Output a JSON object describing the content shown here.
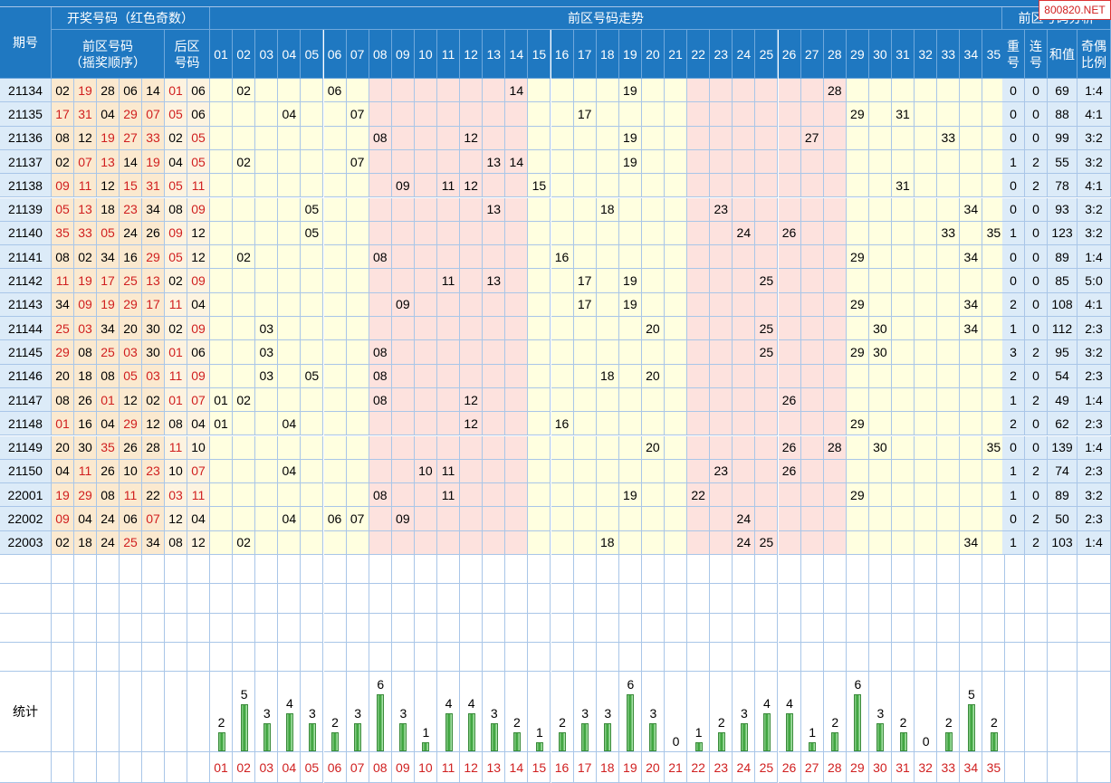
{
  "watermark": "800820.NET",
  "header": {
    "issue": "期号",
    "draw_title": "开奖号码（红色奇数）",
    "front_order_1": "前区号码",
    "front_order_2": "（摇奖顺序）",
    "back_1": "后区",
    "back_2": "号码",
    "trend_title": "前区号码走势",
    "analysis_title": "前区号码分析",
    "repeat": [
      "重",
      "号"
    ],
    "consecutive": [
      "连",
      "号"
    ],
    "sum": "和值",
    "ratio": [
      "奇偶",
      "比例"
    ],
    "numbers": [
      "01",
      "02",
      "03",
      "04",
      "05",
      "06",
      "07",
      "08",
      "09",
      "10",
      "11",
      "12",
      "13",
      "14",
      "15",
      "16",
      "17",
      "18",
      "19",
      "20",
      "21",
      "22",
      "23",
      "24",
      "25",
      "26",
      "27",
      "28",
      "29",
      "30",
      "31",
      "32",
      "33",
      "34",
      "35"
    ]
  },
  "rows": [
    {
      "issue": "21134",
      "front": [
        "02",
        "19",
        "28",
        "06",
        "14"
      ],
      "back": [
        "01",
        "06"
      ],
      "repeat": "0",
      "consecutive": "0",
      "sum": "69",
      "ratio": "1:4"
    },
    {
      "issue": "21135",
      "front": [
        "17",
        "31",
        "04",
        "29",
        "07"
      ],
      "back": [
        "05",
        "06"
      ],
      "repeat": "0",
      "consecutive": "0",
      "sum": "88",
      "ratio": "4:1"
    },
    {
      "issue": "21136",
      "front": [
        "08",
        "12",
        "19",
        "27",
        "33"
      ],
      "back": [
        "02",
        "05"
      ],
      "repeat": "0",
      "consecutive": "0",
      "sum": "99",
      "ratio": "3:2"
    },
    {
      "issue": "21137",
      "front": [
        "02",
        "07",
        "13",
        "14",
        "19"
      ],
      "back": [
        "04",
        "05"
      ],
      "repeat": "1",
      "consecutive": "2",
      "sum": "55",
      "ratio": "3:2"
    },
    {
      "issue": "21138",
      "front": [
        "09",
        "11",
        "12",
        "15",
        "31"
      ],
      "back": [
        "05",
        "11"
      ],
      "repeat": "0",
      "consecutive": "2",
      "sum": "78",
      "ratio": "4:1"
    },
    {
      "issue": "21139",
      "front": [
        "05",
        "13",
        "18",
        "23",
        "34"
      ],
      "back": [
        "08",
        "09"
      ],
      "repeat": "0",
      "consecutive": "0",
      "sum": "93",
      "ratio": "3:2"
    },
    {
      "issue": "21140",
      "front": [
        "35",
        "33",
        "05",
        "24",
        "26"
      ],
      "back": [
        "09",
        "12"
      ],
      "repeat": "1",
      "consecutive": "0",
      "sum": "123",
      "ratio": "3:2"
    },
    {
      "issue": "21141",
      "front": [
        "08",
        "02",
        "34",
        "16",
        "29"
      ],
      "back": [
        "05",
        "12"
      ],
      "repeat": "0",
      "consecutive": "0",
      "sum": "89",
      "ratio": "1:4"
    },
    {
      "issue": "21142",
      "front": [
        "11",
        "19",
        "17",
        "25",
        "13"
      ],
      "back": [
        "02",
        "09"
      ],
      "repeat": "0",
      "consecutive": "0",
      "sum": "85",
      "ratio": "5:0"
    },
    {
      "issue": "21143",
      "front": [
        "34",
        "09",
        "19",
        "29",
        "17"
      ],
      "back": [
        "11",
        "04"
      ],
      "repeat": "2",
      "consecutive": "0",
      "sum": "108",
      "ratio": "4:1"
    },
    {
      "issue": "21144",
      "front": [
        "25",
        "03",
        "34",
        "20",
        "30"
      ],
      "back": [
        "02",
        "09"
      ],
      "repeat": "1",
      "consecutive": "0",
      "sum": "112",
      "ratio": "2:3"
    },
    {
      "issue": "21145",
      "front": [
        "29",
        "08",
        "25",
        "03",
        "30"
      ],
      "back": [
        "01",
        "06"
      ],
      "repeat": "3",
      "consecutive": "2",
      "sum": "95",
      "ratio": "3:2"
    },
    {
      "issue": "21146",
      "front": [
        "20",
        "18",
        "08",
        "05",
        "03"
      ],
      "back": [
        "11",
        "09"
      ],
      "repeat": "2",
      "consecutive": "0",
      "sum": "54",
      "ratio": "2:3"
    },
    {
      "issue": "21147",
      "front": [
        "08",
        "26",
        "01",
        "12",
        "02"
      ],
      "back": [
        "01",
        "07"
      ],
      "repeat": "1",
      "consecutive": "2",
      "sum": "49",
      "ratio": "1:4"
    },
    {
      "issue": "21148",
      "front": [
        "01",
        "16",
        "04",
        "29",
        "12"
      ],
      "back": [
        "08",
        "04"
      ],
      "repeat": "2",
      "consecutive": "0",
      "sum": "62",
      "ratio": "2:3"
    },
    {
      "issue": "21149",
      "front": [
        "20",
        "30",
        "35",
        "26",
        "28"
      ],
      "back": [
        "11",
        "10"
      ],
      "repeat": "0",
      "consecutive": "0",
      "sum": "139",
      "ratio": "1:4"
    },
    {
      "issue": "21150",
      "front": [
        "04",
        "11",
        "26",
        "10",
        "23"
      ],
      "back": [
        "10",
        "07"
      ],
      "repeat": "1",
      "consecutive": "2",
      "sum": "74",
      "ratio": "2:3"
    },
    {
      "issue": "22001",
      "front": [
        "19",
        "29",
        "08",
        "11",
        "22"
      ],
      "back": [
        "03",
        "11"
      ],
      "repeat": "1",
      "consecutive": "0",
      "sum": "89",
      "ratio": "3:2"
    },
    {
      "issue": "22002",
      "front": [
        "09",
        "04",
        "24",
        "06",
        "07"
      ],
      "back": [
        "12",
        "04"
      ],
      "repeat": "0",
      "consecutive": "2",
      "sum": "50",
      "ratio": "2:3"
    },
    {
      "issue": "22003",
      "front": [
        "02",
        "18",
        "24",
        "25",
        "34"
      ],
      "back": [
        "08",
        "12"
      ],
      "repeat": "1",
      "consecutive": "2",
      "sum": "103",
      "ratio": "1:4"
    }
  ],
  "stats": {
    "label": "统计",
    "counts": [
      2,
      5,
      3,
      4,
      3,
      2,
      3,
      6,
      3,
      1,
      4,
      4,
      3,
      2,
      1,
      2,
      3,
      3,
      6,
      3,
      0,
      1,
      2,
      3,
      4,
      4,
      1,
      2,
      6,
      3,
      2,
      0,
      2,
      5,
      2
    ]
  },
  "colors": {
    "header_bg": "#1f78c1",
    "odd_text": "#d01f1f",
    "zone_yellow": "#ffffe0",
    "zone_pink": "#fde2de",
    "info_bg": "#fbe9cf",
    "analysis_bg": "#dcebf8",
    "bar_green": "#2f9b2f"
  }
}
